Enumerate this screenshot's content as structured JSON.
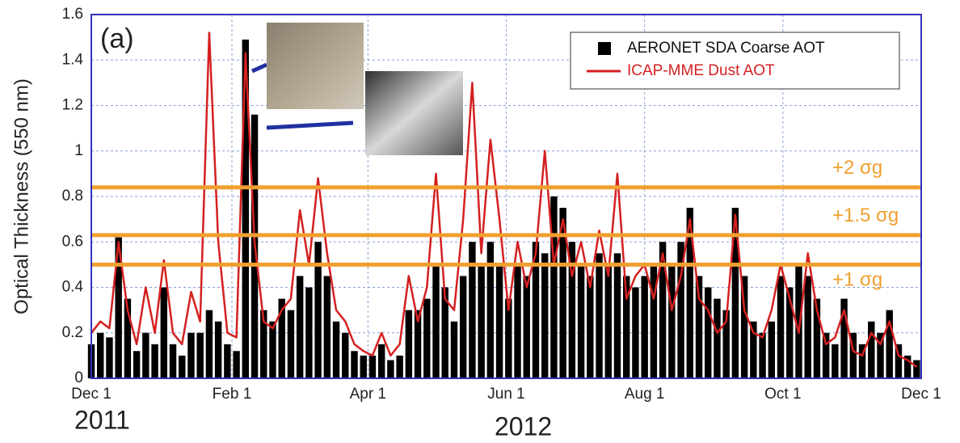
{
  "chart_data": {
    "type": "bar",
    "y_label": "Optical Thickness (550 nm)",
    "panel_label": "(a)",
    "year_labels": [
      "2011",
      "2012"
    ],
    "x": [
      0,
      4,
      8,
      12,
      16,
      20,
      24,
      28,
      32,
      36,
      40,
      44,
      48,
      52,
      56,
      60,
      64,
      68,
      72,
      76,
      80,
      84,
      88,
      92,
      96,
      100,
      104,
      108,
      112,
      116,
      120,
      124,
      128,
      132,
      136,
      140,
      144,
      148,
      152,
      156,
      160,
      164,
      168,
      172,
      176,
      180,
      184,
      188,
      192,
      196,
      200,
      204,
      208,
      212,
      216,
      220,
      224,
      228,
      232,
      236,
      240,
      244,
      248,
      252,
      256,
      260,
      264,
      268,
      272,
      276,
      280,
      284,
      288,
      292,
      296,
      300,
      304,
      308,
      312,
      316,
      320,
      324,
      328,
      332,
      336,
      340,
      344,
      348,
      352,
      356,
      360,
      364
    ],
    "xlim": [
      0,
      366
    ],
    "xticks": [
      {
        "value": 0,
        "label": "Dec 1"
      },
      {
        "value": 62,
        "label": "Feb 1"
      },
      {
        "value": 122,
        "label": "Apr 1"
      },
      {
        "value": 183,
        "label": "Jun 1"
      },
      {
        "value": 244,
        "label": "Aug 1"
      },
      {
        "value": 305,
        "label": "Oct 1"
      },
      {
        "value": 366,
        "label": "Dec 1"
      }
    ],
    "ylim": [
      0,
      1.6
    ],
    "yticks": [
      0,
      0.2,
      0.4,
      0.6,
      0.8,
      1,
      1.2,
      1.4,
      1.6
    ],
    "grid": true,
    "legend": "upper right",
    "series": [
      {
        "name": "AERONET SDA Coarse AOT",
        "type": "bar",
        "color": "#000000",
        "values": [
          0.15,
          0.2,
          0.18,
          0.62,
          0.35,
          0.12,
          0.2,
          0.15,
          0.4,
          0.15,
          0.1,
          0.2,
          0.2,
          0.3,
          0.25,
          0.15,
          0.12,
          1.49,
          1.16,
          0.3,
          0.25,
          0.35,
          0.3,
          0.45,
          0.4,
          0.6,
          0.45,
          0.25,
          0.2,
          0.12,
          0.1,
          0.1,
          0.15,
          0.08,
          0.1,
          0.3,
          0.3,
          0.35,
          0.5,
          0.4,
          0.25,
          0.45,
          0.6,
          0.5,
          0.6,
          0.5,
          0.35,
          0.5,
          0.45,
          0.6,
          0.55,
          0.8,
          0.75,
          0.6,
          0.5,
          0.45,
          0.55,
          0.5,
          0.55,
          0.45,
          0.4,
          0.45,
          0.5,
          0.6,
          0.5,
          0.6,
          0.75,
          0.45,
          0.4,
          0.35,
          0.3,
          0.75,
          0.45,
          0.25,
          0.2,
          0.25,
          0.45,
          0.4,
          0.5,
          0.45,
          0.35,
          0.2,
          0.15,
          0.35,
          0.2,
          0.15,
          0.25,
          0.2,
          0.3,
          0.15,
          0.1,
          0.08
        ]
      },
      {
        "name": "ICAP-MME Dust AOT",
        "type": "line",
        "color": "#d42020",
        "values": [
          0.2,
          0.25,
          0.22,
          0.6,
          0.3,
          0.15,
          0.4,
          0.2,
          0.52,
          0.2,
          0.15,
          0.38,
          0.25,
          1.52,
          0.6,
          0.2,
          0.18,
          1.43,
          0.6,
          0.25,
          0.22,
          0.3,
          0.35,
          0.74,
          0.5,
          0.88,
          0.55,
          0.3,
          0.25,
          0.15,
          0.12,
          0.1,
          0.2,
          0.1,
          0.15,
          0.45,
          0.25,
          0.4,
          0.9,
          0.35,
          0.3,
          0.7,
          1.3,
          0.55,
          1.05,
          0.7,
          0.3,
          0.6,
          0.4,
          0.55,
          1.0,
          0.5,
          0.7,
          0.45,
          0.6,
          0.4,
          0.65,
          0.45,
          0.9,
          0.35,
          0.45,
          0.5,
          0.35,
          0.55,
          0.3,
          0.45,
          0.7,
          0.35,
          0.3,
          0.2,
          0.25,
          0.72,
          0.3,
          0.2,
          0.18,
          0.3,
          0.5,
          0.35,
          0.2,
          0.55,
          0.3,
          0.15,
          0.18,
          0.3,
          0.12,
          0.1,
          0.2,
          0.15,
          0.25,
          0.1,
          0.08,
          0.05
        ]
      }
    ],
    "thresholds": [
      {
        "value": 0.84,
        "label": "+2 σg",
        "color": "#f0a030"
      },
      {
        "value": 0.63,
        "label": "+1.5 σg",
        "color": "#f0a030"
      },
      {
        "value": 0.5,
        "label": "+1 σg",
        "color": "#f0a030"
      }
    ]
  }
}
